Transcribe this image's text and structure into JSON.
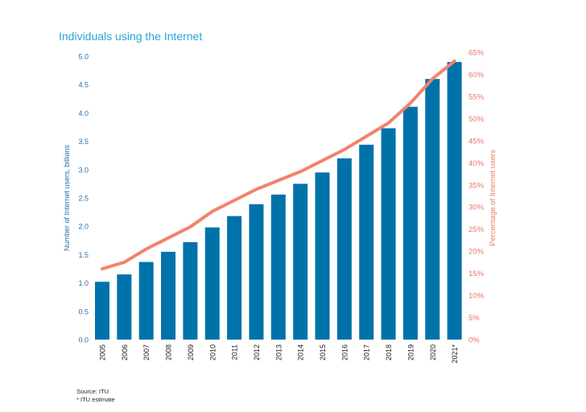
{
  "chart_data": {
    "type": "bar+line",
    "title": "Individuals using the Internet",
    "categories": [
      "2005",
      "2006",
      "2007",
      "2008",
      "2009",
      "2010",
      "2011",
      "2012",
      "2013",
      "2014",
      "2015",
      "2016",
      "2017",
      "2018",
      "2019",
      "2020",
      "2021*"
    ],
    "series": [
      {
        "name": "Number of Internet users, billions",
        "type": "bar",
        "axis": "left",
        "color": "#0072aa",
        "values": [
          1.02,
          1.15,
          1.37,
          1.55,
          1.72,
          1.98,
          2.18,
          2.39,
          2.56,
          2.75,
          2.95,
          3.2,
          3.44,
          3.73,
          4.11,
          4.6,
          4.9
        ]
      },
      {
        "name": "Percentage of Internet users",
        "type": "line",
        "axis": "right",
        "color": "#f4826c",
        "values": [
          16,
          17.5,
          20.5,
          23,
          25.5,
          29,
          31.5,
          34,
          36,
          38,
          40.5,
          43,
          46,
          49,
          53.5,
          59,
          63
        ]
      }
    ],
    "ylabel": "Number of Internet users, billions",
    "ylabel_right": "Percentage of Internet users",
    "ylim": [
      0,
      5.0
    ],
    "ylim_right": [
      0,
      65
    ],
    "yticks": [
      "0.0",
      "0.5",
      "1.0",
      "1.5",
      "2.0",
      "2.5",
      "3.0",
      "3.5",
      "4.0",
      "4.5",
      "5.0"
    ],
    "yticks_right": [
      "0%",
      "5%",
      "10%",
      "15%",
      "20%",
      "25%",
      "30%",
      "35%",
      "40%",
      "45%",
      "50%",
      "55%",
      "60%",
      "65%"
    ],
    "grid": false,
    "colors": {
      "left_axis": "#2a6fa8",
      "right_axis": "#e5795f",
      "title": "#2aa4d8"
    }
  },
  "footnotes": {
    "source": "Source: ITU",
    "estimate": "* ITU estimate"
  }
}
